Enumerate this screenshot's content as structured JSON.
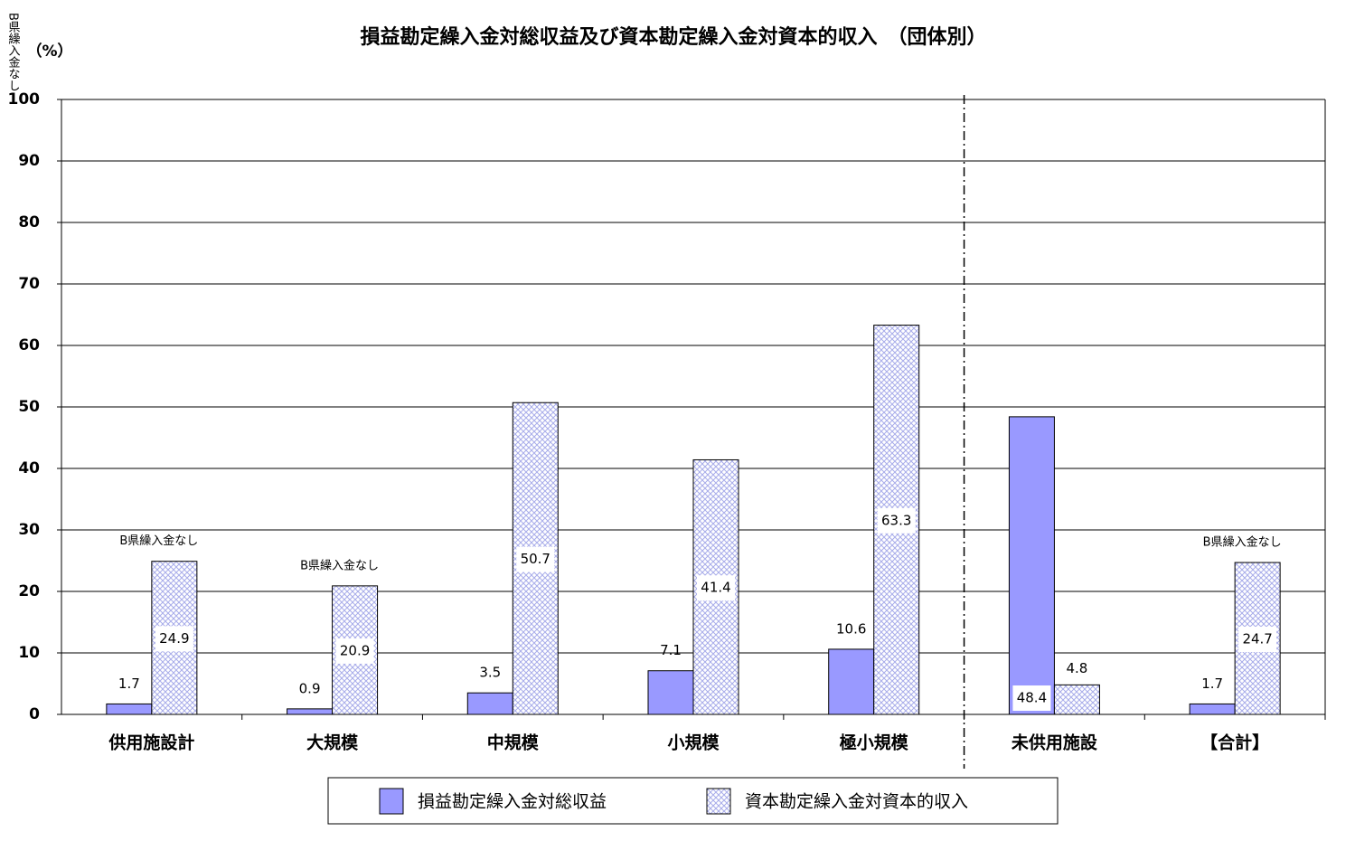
{
  "chart_data": {
    "type": "bar",
    "title": "損益勘定繰入金対総収益及び資本勘定繰入金対資本的収入　（団体別）",
    "y_label": "（%）",
    "side_note": "B県繰入金なし",
    "categories": [
      "供用施設計",
      "大規模",
      "中規模",
      "小規模",
      "極小規模",
      "未供用施設",
      "【合計】"
    ],
    "annotations": [
      "B県繰入金なし",
      "B県繰入金なし",
      null,
      null,
      null,
      null,
      "B県繰入金なし"
    ],
    "series": [
      {
        "name": "損益勘定繰入金対総収益",
        "color": "#9999ff",
        "values": [
          1.7,
          0.9,
          3.5,
          7.1,
          10.6,
          48.4,
          1.7
        ]
      },
      {
        "name": "資本勘定繰入金対資本的収入",
        "color": "#b8bcf0",
        "pattern": true,
        "values": [
          24.9,
          20.9,
          50.7,
          41.4,
          63.3,
          4.8,
          24.7
        ]
      }
    ],
    "ylim": [
      0,
      100
    ],
    "yticks": [
      0,
      10,
      20,
      30,
      40,
      50,
      60,
      70,
      80,
      90,
      100
    ],
    "grid": true
  }
}
